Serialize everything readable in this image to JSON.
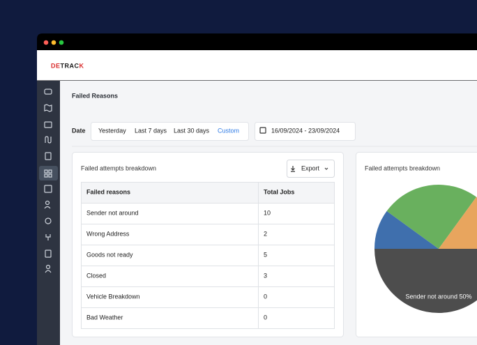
{
  "header": {
    "logo": "DETRACK"
  },
  "page": {
    "title": "Failed Reasons",
    "date_label": "Date",
    "date_options": [
      "Yesterday",
      "Last 7 days",
      "Last 30 days",
      "Custom"
    ],
    "date_range": "16/09/2024 - 23/09/2024"
  },
  "table_card": {
    "title": "Failed attempts breakdown",
    "export": "Export"
  },
  "table": {
    "columns": [
      "Failed reasons",
      "Total Jobs"
    ],
    "rows": [
      [
        "Sender not around",
        10
      ],
      [
        "Wrong Address",
        2
      ],
      [
        "Goods not ready",
        5
      ],
      [
        "Closed",
        3
      ],
      [
        "Vehicle Breakdown",
        0
      ],
      [
        "Bad Weather",
        0
      ]
    ]
  },
  "chart_card": {
    "title": "Failed attempts breakdown",
    "slice_label": "Sender not around 50%",
    "colors": [
      "#4d4d4d",
      "#3f6fad",
      "#69b05e",
      "#e8a55e",
      "#8a8a8a",
      "#b5b5b5"
    ]
  }
}
